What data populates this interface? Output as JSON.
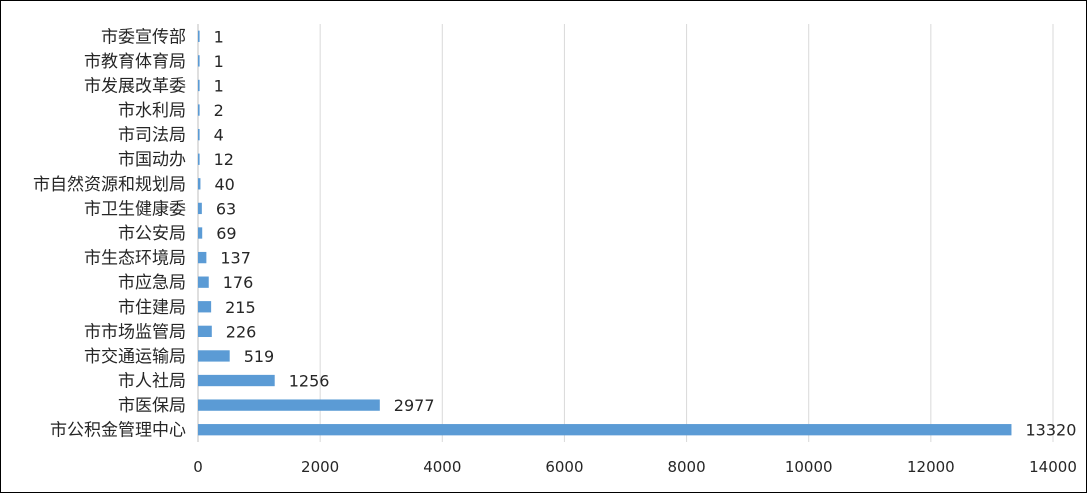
{
  "chart_data": {
    "type": "bar",
    "orientation": "horizontal",
    "categories": [
      "市委宣传部",
      "市教育体育局",
      "市发展改革委",
      "市水利局",
      "市司法局",
      "市国动办",
      "市自然资源和规划局",
      "市卫生健康委",
      "市公安局",
      "市生态环境局",
      "市应急局",
      "市住建局",
      "市市场监管局",
      "市交通运输局",
      "市人社局",
      "市医保局",
      "市公积金管理中心"
    ],
    "values": [
      1,
      1,
      1,
      2,
      4,
      12,
      40,
      63,
      69,
      137,
      176,
      215,
      226,
      519,
      1256,
      2977,
      13320
    ],
    "data_labels": [
      "1",
      "1",
      "1",
      "2",
      "4",
      "12",
      "40",
      "63",
      "69",
      "137",
      "176",
      "215",
      "226",
      "519",
      "1256",
      "2977",
      "13320"
    ],
    "x_ticks": [
      "0",
      "2000",
      "4000",
      "6000",
      "8000",
      "10000",
      "12000",
      "14000"
    ],
    "xlim": [
      0,
      14000
    ],
    "title": "",
    "xlabel": "",
    "ylabel": "",
    "grid": "vertical",
    "legend": "none",
    "bar_color": "#5b9bd5"
  }
}
